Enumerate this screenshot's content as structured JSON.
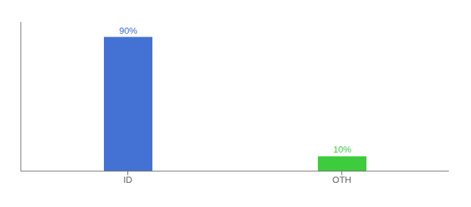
{
  "chart_data": {
    "type": "bar",
    "categories": [
      "ID",
      "OTH"
    ],
    "values": [
      90,
      10
    ],
    "value_labels": [
      "90%",
      "10%"
    ],
    "data_labels": true,
    "colors": [
      "#4472d4",
      "#3dcc3d"
    ],
    "ylim": [
      0,
      100
    ],
    "tick_labels": "x",
    "grid": false
  }
}
